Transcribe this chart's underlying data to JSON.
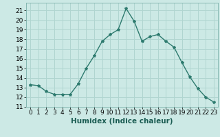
{
  "x": [
    0,
    1,
    2,
    3,
    4,
    5,
    6,
    7,
    8,
    9,
    10,
    11,
    12,
    13,
    14,
    15,
    16,
    17,
    18,
    19,
    20,
    21,
    22,
    23
  ],
  "y": [
    13.3,
    13.2,
    12.6,
    12.3,
    12.3,
    12.3,
    13.4,
    15.0,
    16.3,
    17.8,
    18.5,
    19.0,
    21.2,
    19.9,
    17.8,
    18.3,
    18.5,
    17.8,
    17.2,
    15.6,
    14.1,
    12.9,
    12.0,
    11.5
  ],
  "line_color": "#2d7a6e",
  "marker": "*",
  "marker_size": 3,
  "bg_color": "#cce9e5",
  "grid_color": "#b0d5d0",
  "xlabel": "Humidex (Indice chaleur)",
  "xlim": [
    -0.5,
    23.5
  ],
  "ylim": [
    11,
    21.8
  ],
  "yticks": [
    11,
    12,
    13,
    14,
    15,
    16,
    17,
    18,
    19,
    20,
    21
  ],
  "xticks": [
    0,
    1,
    2,
    3,
    4,
    5,
    6,
    7,
    8,
    9,
    10,
    11,
    12,
    13,
    14,
    15,
    16,
    17,
    18,
    19,
    20,
    21,
    22,
    23
  ],
  "xlabel_fontsize": 7.5,
  "tick_fontsize": 6.5,
  "line_width": 1.0
}
